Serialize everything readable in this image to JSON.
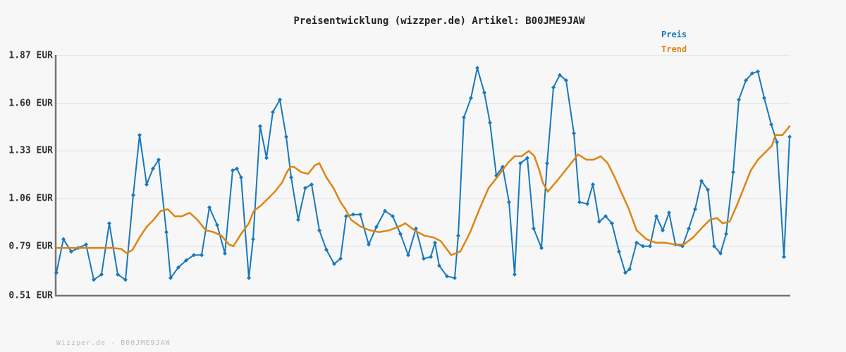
{
  "title": "Preisentwicklung (wizzper.de) Artikel: B00JME9JAW",
  "footer": "Wizzper.de - B00JME9JAW",
  "legend": [
    {
      "label": "Preis",
      "color": "#1878bd"
    },
    {
      "label": "Trend",
      "color": "#dd8512"
    }
  ],
  "colors": {
    "price_line": "#1878bd",
    "trend_line": "#dd8512",
    "grid": "#e3e3e2",
    "axis": "#757575",
    "background": "#f7f7f7",
    "tick_text": "#333333",
    "footer_text": "#bcbcbc",
    "title_text": "#222222"
  },
  "y_axis": {
    "unit": "EUR",
    "ticks": [
      {
        "label": "1.87 EUR",
        "value": 1.87
      },
      {
        "label": "1.60 EUR",
        "value": 1.6
      },
      {
        "label": "1.33 EUR",
        "value": 1.33
      },
      {
        "label": "1.06 EUR",
        "value": 1.06
      },
      {
        "label": "0.79 EUR",
        "value": 0.79
      },
      {
        "label": "0.51 EUR",
        "value": 0.51
      }
    ]
  },
  "chart_data": {
    "type": "line",
    "title": "Preisentwicklung (wizzper.de) Artikel: B00JME9JAW",
    "xlabel": "",
    "ylabel": "EUR",
    "ylim": [
      0.51,
      1.87
    ],
    "grid": "horizontal",
    "legend_position": "top-right",
    "x_unit": "px-along-axis (no x tick labels visible in chart)",
    "series": [
      {
        "name": "Preis",
        "color": "#1878bd",
        "markers": true,
        "points": [
          [
            80,
            0.64
          ],
          [
            90,
            0.83
          ],
          [
            101,
            0.76
          ],
          [
            111,
            0.78
          ],
          [
            122,
            0.8
          ],
          [
            133,
            0.6
          ],
          [
            144,
            0.63
          ],
          [
            155,
            0.92
          ],
          [
            167,
            0.63
          ],
          [
            178,
            0.6
          ],
          [
            189,
            1.08
          ],
          [
            198,
            1.42
          ],
          [
            208,
            1.14
          ],
          [
            217,
            1.23
          ],
          [
            225,
            1.28
          ],
          [
            236,
            0.87
          ],
          [
            242,
            0.61
          ],
          [
            253,
            0.67
          ],
          [
            264,
            0.71
          ],
          [
            275,
            0.74
          ],
          [
            286,
            0.74
          ],
          [
            297,
            1.01
          ],
          [
            308,
            0.91
          ],
          [
            319,
            0.75
          ],
          [
            330,
            1.22
          ],
          [
            336,
            1.23
          ],
          [
            342,
            1.18
          ],
          [
            353,
            0.61
          ],
          [
            359,
            0.83
          ],
          [
            369,
            1.47
          ],
          [
            378,
            1.29
          ],
          [
            387,
            1.55
          ],
          [
            397,
            1.62
          ],
          [
            406,
            1.41
          ],
          [
            413,
            1.18
          ],
          [
            423,
            0.94
          ],
          [
            433,
            1.12
          ],
          [
            442,
            1.14
          ],
          [
            453,
            0.88
          ],
          [
            463,
            0.77
          ],
          [
            474,
            0.69
          ],
          [
            483,
            0.72
          ],
          [
            491,
            0.96
          ],
          [
            501,
            0.97
          ],
          [
            511,
            0.97
          ],
          [
            523,
            0.8
          ],
          [
            534,
            0.9
          ],
          [
            546,
            0.99
          ],
          [
            557,
            0.96
          ],
          [
            568,
            0.86
          ],
          [
            579,
            0.74
          ],
          [
            590,
            0.89
          ],
          [
            601,
            0.72
          ],
          [
            611,
            0.73
          ],
          [
            617,
            0.81
          ],
          [
            623,
            0.68
          ],
          [
            634,
            0.62
          ],
          [
            645,
            0.61
          ],
          [
            650,
            0.85
          ],
          [
            658,
            1.52
          ],
          [
            668,
            1.63
          ],
          [
            677,
            1.8
          ],
          [
            687,
            1.66
          ],
          [
            695,
            1.49
          ],
          [
            704,
            1.19
          ],
          [
            713,
            1.24
          ],
          [
            722,
            1.04
          ],
          [
            730,
            0.63
          ],
          [
            738,
            1.26
          ],
          [
            748,
            1.29
          ],
          [
            757,
            0.89
          ],
          [
            768,
            0.78
          ],
          [
            776,
            1.26
          ],
          [
            785,
            1.69
          ],
          [
            794,
            1.76
          ],
          [
            803,
            1.73
          ],
          [
            814,
            1.43
          ],
          [
            822,
            1.04
          ],
          [
            833,
            1.03
          ],
          [
            841,
            1.14
          ],
          [
            850,
            0.93
          ],
          [
            859,
            0.96
          ],
          [
            868,
            0.92
          ],
          [
            878,
            0.76
          ],
          [
            887,
            0.64
          ],
          [
            893,
            0.66
          ],
          [
            903,
            0.81
          ],
          [
            912,
            0.79
          ],
          [
            922,
            0.79
          ],
          [
            931,
            0.96
          ],
          [
            940,
            0.88
          ],
          [
            949,
            0.98
          ],
          [
            958,
            0.8
          ],
          [
            968,
            0.79
          ],
          [
            977,
            0.89
          ],
          [
            986,
            1.0
          ],
          [
            995,
            1.16
          ],
          [
            1004,
            1.11
          ],
          [
            1013,
            0.79
          ],
          [
            1022,
            0.75
          ],
          [
            1030,
            0.86
          ],
          [
            1040,
            1.21
          ],
          [
            1048,
            1.62
          ],
          [
            1058,
            1.73
          ],
          [
            1067,
            1.77
          ],
          [
            1075,
            1.78
          ],
          [
            1084,
            1.63
          ],
          [
            1094,
            1.48
          ],
          [
            1102,
            1.38
          ],
          [
            1112,
            0.73
          ],
          [
            1120,
            1.41
          ]
        ]
      },
      {
        "name": "Trend",
        "color": "#dd8512",
        "markers": false,
        "points": [
          [
            80,
            0.78
          ],
          [
            100,
            0.78
          ],
          [
            120,
            0.78
          ],
          [
            140,
            0.78
          ],
          [
            160,
            0.78
          ],
          [
            172,
            0.775
          ],
          [
            180,
            0.75
          ],
          [
            188,
            0.77
          ],
          [
            198,
            0.84
          ],
          [
            208,
            0.9
          ],
          [
            218,
            0.94
          ],
          [
            228,
            0.99
          ],
          [
            238,
            1.0
          ],
          [
            248,
            0.96
          ],
          [
            258,
            0.96
          ],
          [
            269,
            0.98
          ],
          [
            280,
            0.94
          ],
          [
            292,
            0.88
          ],
          [
            303,
            0.87
          ],
          [
            314,
            0.85
          ],
          [
            325,
            0.8
          ],
          [
            331,
            0.79
          ],
          [
            342,
            0.86
          ],
          [
            353,
            0.92
          ],
          [
            360,
            0.99
          ],
          [
            370,
            1.02
          ],
          [
            380,
            1.06
          ],
          [
            390,
            1.1
          ],
          [
            400,
            1.15
          ],
          [
            407,
            1.21
          ],
          [
            412,
            1.24
          ],
          [
            417,
            1.24
          ],
          [
            427,
            1.21
          ],
          [
            437,
            1.2
          ],
          [
            447,
            1.25
          ],
          [
            453,
            1.26
          ],
          [
            463,
            1.18
          ],
          [
            473,
            1.12
          ],
          [
            483,
            1.04
          ],
          [
            490,
            1.0
          ],
          [
            498,
            0.94
          ],
          [
            512,
            0.9
          ],
          [
            525,
            0.88
          ],
          [
            538,
            0.87
          ],
          [
            552,
            0.88
          ],
          [
            565,
            0.9
          ],
          [
            575,
            0.92
          ],
          [
            588,
            0.88
          ],
          [
            602,
            0.85
          ],
          [
            615,
            0.84
          ],
          [
            625,
            0.82
          ],
          [
            640,
            0.74
          ],
          [
            653,
            0.76
          ],
          [
            667,
            0.87
          ],
          [
            680,
            1.0
          ],
          [
            693,
            1.12
          ],
          [
            707,
            1.19
          ],
          [
            720,
            1.26
          ],
          [
            730,
            1.3
          ],
          [
            740,
            1.3
          ],
          [
            750,
            1.33
          ],
          [
            758,
            1.3
          ],
          [
            765,
            1.22
          ],
          [
            770,
            1.15
          ],
          [
            777,
            1.1
          ],
          [
            788,
            1.15
          ],
          [
            802,
            1.22
          ],
          [
            814,
            1.28
          ],
          [
            820,
            1.31
          ],
          [
            832,
            1.28
          ],
          [
            842,
            1.28
          ],
          [
            852,
            1.3
          ],
          [
            862,
            1.26
          ],
          [
            872,
            1.18
          ],
          [
            882,
            1.09
          ],
          [
            892,
            1.0
          ],
          [
            903,
            0.88
          ],
          [
            917,
            0.83
          ],
          [
            930,
            0.81
          ],
          [
            943,
            0.81
          ],
          [
            957,
            0.8
          ],
          [
            970,
            0.8
          ],
          [
            983,
            0.84
          ],
          [
            997,
            0.9
          ],
          [
            1007,
            0.94
          ],
          [
            1017,
            0.95
          ],
          [
            1025,
            0.92
          ],
          [
            1035,
            0.93
          ],
          [
            1045,
            1.02
          ],
          [
            1055,
            1.12
          ],
          [
            1065,
            1.22
          ],
          [
            1075,
            1.28
          ],
          [
            1085,
            1.32
          ],
          [
            1095,
            1.36
          ],
          [
            1100,
            1.42
          ],
          [
            1110,
            1.42
          ],
          [
            1120,
            1.47
          ]
        ]
      }
    ]
  }
}
